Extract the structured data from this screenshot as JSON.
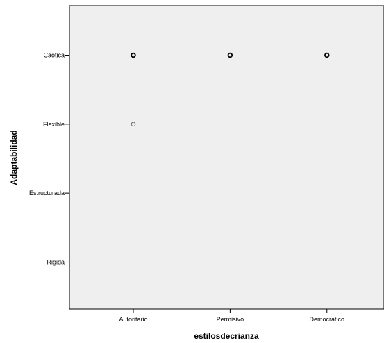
{
  "chart_data": {
    "type": "scatter",
    "title": "",
    "xlabel": "estilosdecrianza",
    "ylabel": "Adaptabilidad",
    "x_categories": [
      "Autoritario",
      "Permisivo",
      "Democrático"
    ],
    "y_categories": [
      "Rigida",
      "Estructurada",
      "Flexible",
      "Caótica"
    ],
    "grid": false,
    "colors": {
      "plot_background": "#efefef",
      "marker_stroke": "#000000",
      "light_marker_stroke": "#666666"
    },
    "points": [
      {
        "x": "Autoritario",
        "y": "Caótica",
        "weight": "bold"
      },
      {
        "x": "Permisivo",
        "y": "Caótica",
        "weight": "bold"
      },
      {
        "x": "Democrático",
        "y": "Caótica",
        "weight": "bold"
      },
      {
        "x": "Autoritario",
        "y": "Flexible",
        "weight": "light"
      }
    ]
  }
}
